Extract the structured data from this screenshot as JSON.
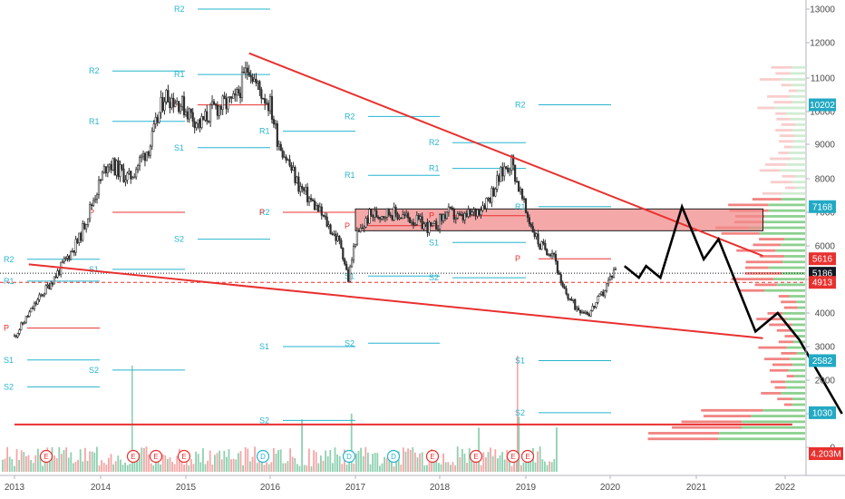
{
  "chart_data": {
    "type": "candlestick",
    "colors": {
      "up": "#2f2f2f",
      "down": "#2f2f2f",
      "trendline": "#e8312f",
      "zone_fill": "#f28b8b",
      "projection": "#000000",
      "pivot_support": "#26b5cf",
      "pivot_pivot": "#e8312f",
      "volume_up": "#8fd0b0",
      "volume_down": "#f4a6a6",
      "profile_up": "#79c97d",
      "profile_down": "#ef6f6c",
      "badge_black": "#131722",
      "badge_red": "#e8312f",
      "badge_teal": "#22a9c4"
    },
    "y_axis": {
      "scale": "log",
      "range": [
        0,
        13000
      ],
      "ticks": [
        13000,
        12000,
        11000,
        10000,
        9000,
        8000,
        7000,
        6000,
        5000,
        4000,
        3000,
        2000,
        1000,
        0
      ],
      "tick_labels": [
        "13000",
        "12000",
        "11000",
        "10000",
        "9000",
        "8000",
        "7000",
        "6000",
        "5000",
        "4000",
        "3000",
        "2000",
        "1000",
        "0"
      ]
    },
    "x_axis": {
      "range": [
        "2013-01",
        "2022-06"
      ],
      "tick_labels": [
        "2013",
        "2014",
        "2015",
        "2016",
        "2017",
        "2018",
        "2019",
        "2020",
        "2021",
        "2022"
      ]
    },
    "price_series": [
      [
        "2013-01",
        3300
      ],
      [
        "2013-04",
        4300
      ],
      [
        "2013-07",
        5200
      ],
      [
        "2013-10",
        6200
      ],
      [
        "2013-12",
        7400
      ],
      [
        "2014-02",
        8500
      ],
      [
        "2014-05",
        8000
      ],
      [
        "2014-08",
        9000
      ],
      [
        "2014-10",
        10500
      ],
      [
        "2014-12",
        10300
      ],
      [
        "2015-03",
        9600
      ],
      [
        "2015-05",
        10100
      ],
      [
        "2015-08",
        10300
      ],
      [
        "2015-10",
        11400
      ],
      [
        "2015-11",
        10800
      ],
      [
        "2016-01",
        10200
      ],
      [
        "2016-02",
        9200
      ],
      [
        "2016-05",
        7800
      ],
      [
        "2016-08",
        7000
      ],
      [
        "2016-11",
        6000
      ],
      [
        "2016-12",
        5000
      ],
      [
        "2017-01",
        6200
      ],
      [
        "2017-03",
        6900
      ],
      [
        "2017-06",
        7000
      ],
      [
        "2017-09",
        6800
      ],
      [
        "2017-12",
        6500
      ],
      [
        "2018-02",
        7000
      ],
      [
        "2018-04",
        6800
      ],
      [
        "2018-06",
        7000
      ],
      [
        "2018-08",
        7500
      ],
      [
        "2018-10",
        8300
      ],
      [
        "2018-11",
        8500
      ],
      [
        "2019-01",
        7000
      ],
      [
        "2019-03",
        6000
      ],
      [
        "2019-05",
        5800
      ],
      [
        "2019-06",
        4800
      ],
      [
        "2019-08",
        4200
      ],
      [
        "2019-10",
        4000
      ],
      [
        "2019-12",
        4600
      ],
      [
        "2020-02",
        5500
      ]
    ],
    "trendlines": [
      {
        "from": [
          "2015-10",
          11700
        ],
        "to": [
          "2021-10",
          5700
        ]
      },
      {
        "from": [
          "2013-03",
          5450
        ],
        "to": [
          "2021-10",
          3250
        ]
      },
      {
        "from": [
          "2013-01",
          680
        ],
        "to": [
          "2022-02",
          680
        ]
      }
    ],
    "zone": {
      "from": "2017-01",
      "to": "2021-10",
      "low": 6450,
      "high": 7100
    },
    "projection": [
      [
        "2020-03",
        5400
      ],
      [
        "2020-05",
        5050
      ],
      [
        "2020-06",
        5400
      ],
      [
        "2020-08",
        5050
      ],
      [
        "2020-11",
        7168
      ],
      [
        "2021-02",
        5600
      ],
      [
        "2021-04",
        6200
      ],
      [
        "2021-09",
        3450
      ],
      [
        "2021-12",
        4000
      ],
      [
        "2022-03",
        3200
      ],
      [
        "2022-09",
        1000
      ]
    ],
    "pivot_labels": [
      {
        "label": "R1",
        "color": "support"
      },
      {
        "label": "R2",
        "color": "support"
      },
      {
        "label": "P",
        "color": "pivot"
      },
      {
        "label": "S1",
        "color": "support"
      },
      {
        "label": "S2",
        "color": "support"
      }
    ],
    "price_badges": [
      {
        "value": "10202",
        "color": "teal"
      },
      {
        "value": "7168",
        "color": "teal"
      },
      {
        "value": "5616",
        "color": "red"
      },
      {
        "value": "5186",
        "color": "black"
      },
      {
        "value": "4913",
        "color": "red"
      },
      {
        "value": "2582",
        "color": "teal"
      },
      {
        "value": "1030",
        "color": "teal"
      },
      {
        "value": "4.203M",
        "color": "red"
      }
    ],
    "events": [
      {
        "label": "E",
        "type": "earnings"
      },
      {
        "label": "E",
        "type": "earnings"
      },
      {
        "label": "E",
        "type": "earnings"
      },
      {
        "label": "E",
        "type": "earnings"
      },
      {
        "label": "D",
        "type": "dividend"
      },
      {
        "label": "D",
        "type": "dividend"
      },
      {
        "label": "D",
        "type": "dividend"
      },
      {
        "label": "E",
        "type": "earnings"
      },
      {
        "label": "E",
        "type": "earnings"
      },
      {
        "label": "E",
        "type": "earnings"
      },
      {
        "label": "E",
        "type": "earnings"
      }
    ]
  }
}
